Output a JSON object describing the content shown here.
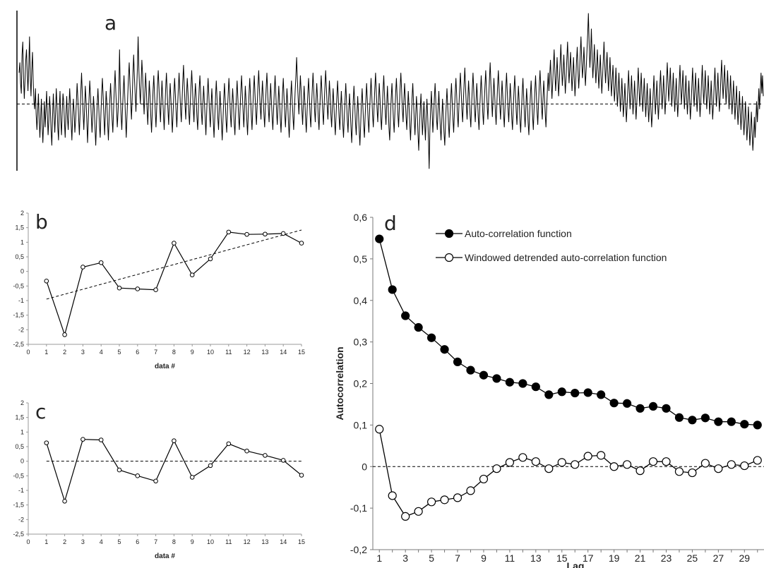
{
  "chart_data": [
    {
      "id": "a",
      "panel_label": "a",
      "type": "line",
      "title": "",
      "xlabel": "",
      "ylabel": "",
      "grid": false,
      "baseline": 0,
      "description_of_values": "noisy time series of about 1000 samples fluctuating around a dashed zero baseline; values estimated",
      "values": [
        1.2,
        1.6,
        0.8,
        0.4,
        1.9,
        2.4,
        1.0,
        0.2,
        0.9,
        1.7,
        2.1,
        1.2,
        0.5,
        1.4,
        2.6,
        1.1,
        0.3,
        1.3,
        2.0,
        0.9,
        0.1,
        -0.2,
        0.6,
        -0.4,
        -1.0,
        -0.3,
        0.4,
        -0.6,
        -1.3,
        -0.5,
        0.2,
        -0.8,
        -1.5,
        -0.7,
        0.1,
        -0.9,
        -0.3,
        0.5,
        -0.4,
        -1.2,
        -0.6,
        0.3,
        -0.2,
        -1.0,
        -1.6,
        -0.5,
        0.4,
        -0.3,
        -1.1,
        -0.4,
        0.6,
        -0.1,
        -0.9,
        -1.4,
        -0.2,
        0.5,
        -0.6,
        -1.2,
        -0.3,
        0.4,
        0.1,
        -0.7,
        -1.3,
        -0.4,
        0.3,
        -0.5,
        -1.0,
        -0.2,
        0.6,
        0.0,
        -0.8,
        -1.4,
        -0.5,
        0.2,
        -0.3,
        -1.1,
        -0.6,
        0.1,
        0.8,
        0.2,
        -0.5,
        -1.2,
        -0.4,
        0.5,
        1.2,
        0.4,
        -0.3,
        -1.0,
        -0.2,
        0.7,
        0.1,
        -0.6,
        -1.5,
        -0.7,
        0.2,
        0.9,
        0.3,
        -0.4,
        -1.1,
        -0.5,
        0.3,
        -0.2,
        -0.9,
        -1.6,
        -0.8,
        0.0,
        0.6,
        -0.1,
        -0.8,
        -1.3,
        -0.4,
        0.4,
        1.0,
        0.3,
        -0.5,
        -1.2,
        -0.3,
        0.5,
        0.0,
        -0.7,
        -1.4,
        -0.6,
        0.2,
        0.8,
        0.1,
        -0.6,
        -1.1,
        -0.2,
        0.6,
        1.3,
        0.5,
        -0.2,
        -0.9,
        -0.3,
        0.4,
        2.1,
        0.6,
        -0.4,
        -1.0,
        -0.2,
        0.5,
        1.1,
        0.3,
        -0.5,
        -1.3,
        -0.5,
        0.3,
        1.0,
        1.6,
        0.8,
        0.1,
        -0.6,
        0.2,
        1.2,
        1.9,
        1.0,
        0.4,
        -0.3,
        0.5,
        1.4,
        2.6,
        1.3,
        0.6,
        0.0,
        0.8,
        1.7,
        1.1,
        0.3,
        -0.4,
        0.4,
        1.2,
        0.6,
        -0.2,
        -0.8,
        0.1,
        0.9,
        0.3,
        -0.5,
        -1.1,
        -0.3,
        0.5,
        1.1,
        0.4,
        -0.3,
        -0.9,
        -0.1,
        0.7,
        1.3,
        0.6,
        -0.1,
        -0.7,
        0.2,
        0.9,
        0.3,
        -0.4,
        -1.0,
        -0.2,
        0.6,
        1.2,
        0.5,
        -0.2,
        -0.8,
        0.1,
        0.8,
        0.2,
        -0.5,
        -1.1,
        -0.3,
        0.4,
        1.0,
        0.4,
        -0.3,
        -0.9,
        -0.1,
        0.6,
        1.2,
        0.5,
        -0.2,
        -0.7,
        0.1,
        0.9,
        1.5,
        0.7,
        0.0,
        -0.6,
        0.3,
        1.0,
        0.4,
        -0.3,
        -0.8,
        0.0,
        0.7,
        1.3,
        0.6,
        -0.1,
        -0.7,
        0.2,
        0.8,
        0.2,
        -0.5,
        -1.0,
        -0.2,
        0.6,
        1.1,
        0.4,
        -0.3,
        -0.8,
        0.0,
        0.7,
        0.1,
        -0.5,
        -1.2,
        -0.4,
        0.4,
        1.0,
        0.3,
        -0.4,
        -0.9,
        -0.1,
        0.6,
        0.0,
        -0.7,
        -1.3,
        -0.5,
        0.3,
        0.9,
        0.2,
        -0.5,
        -1.0,
        -0.2,
        0.5,
        -0.1,
        -0.8,
        -1.4,
        -0.6,
        0.2,
        0.8,
        0.1,
        -0.6,
        -1.1,
        -0.3,
        0.4,
        1.0,
        0.3,
        -0.4,
        -0.9,
        -0.1,
        0.6,
        0.0,
        -0.7,
        -1.2,
        -0.4,
        0.3,
        0.9,
        0.2,
        -0.5,
        -1.0,
        -0.2,
        0.5,
        1.1,
        0.4,
        -0.3,
        -0.9,
        -0.1,
        0.7,
        0.1,
        -0.6,
        -1.2,
        -0.4,
        0.4,
        1.0,
        0.3,
        -0.4,
        -1.0,
        -0.2,
        0.5,
        1.1,
        0.4,
        -0.3,
        -0.8,
        0.0,
        0.7,
        1.3,
        0.6,
        -0.1,
        -0.6,
        0.2,
        0.9,
        0.3,
        -0.4,
        -0.9,
        -0.1,
        0.6,
        1.2,
        0.5,
        -0.2,
        -0.7,
        0.1,
        0.8,
        0.2,
        -0.5,
        -1.0,
        -0.2,
        0.5,
        1.1,
        0.4,
        -0.3,
        -0.8,
        0.0,
        0.7,
        0.1,
        -0.6,
        -1.1,
        -0.3,
        0.4,
        1.0,
        0.3,
        -0.4,
        -0.9,
        -0.1,
        0.6,
        0.0,
        -0.7,
        -1.3,
        -0.5,
        0.3,
        0.9,
        0.2,
        -0.5,
        -1.0,
        -0.2,
        0.5,
        1.1,
        1.8,
        0.9,
        0.2,
        -0.4,
        0.4,
        1.1,
        0.5,
        -0.2,
        -0.8,
        0.0,
        0.7,
        0.1,
        -0.6,
        -1.1,
        -0.3,
        0.4,
        1.0,
        0.3,
        -0.4,
        -0.9,
        -0.1,
        0.6,
        1.2,
        0.5,
        -0.2,
        -0.7,
        0.1,
        0.8,
        0.2,
        -0.5,
        -1.0,
        -0.2,
        0.5,
        1.1,
        0.4,
        -0.3,
        -0.8,
        0.0,
        0.7,
        1.3,
        0.6,
        -0.1,
        -0.6,
        0.2,
        0.9,
        0.3,
        -0.4,
        -0.9,
        -0.1,
        0.6,
        0.0,
        -0.7,
        -1.2,
        -0.4,
        0.3,
        0.9,
        0.2,
        -0.5,
        -1.0,
        -0.2,
        0.5,
        -0.1,
        -0.8,
        -1.3,
        -0.5,
        0.2,
        0.8,
        0.1,
        -0.6,
        -1.1,
        -0.3,
        0.4,
        -0.2,
        -0.9,
        -1.5,
        -0.7,
        0.1,
        0.7,
        0.0,
        -0.7,
        -1.2,
        -0.4,
        0.3,
        -0.3,
        -1.0,
        -1.6,
        -0.8,
        0.0,
        0.6,
        -0.1,
        -0.8,
        -1.3,
        -0.5,
        0.2,
        0.8,
        0.1,
        -0.6,
        -1.1,
        -0.3,
        0.4,
        1.0,
        0.3,
        -0.4,
        -0.9,
        -0.1,
        0.6,
        1.2,
        0.5,
        -0.2,
        -0.7,
        0.1,
        0.8,
        0.2,
        -0.5,
        -1.0,
        -0.2,
        0.5,
        1.1,
        0.4,
        -0.3,
        -0.8,
        0.0,
        0.7,
        -0.1,
        -0.9,
        -1.4,
        -0.6,
        0.2,
        0.8,
        0.1,
        -0.6,
        -1.1,
        -0.3,
        0.4,
        1.0,
        0.3,
        -0.4,
        -0.9,
        -0.1,
        0.6,
        1.2,
        0.5,
        -0.2,
        -0.7,
        0.1,
        0.8,
        0.2,
        -0.5,
        -1.0,
        -0.2,
        0.5,
        -0.1,
        -0.8,
        -1.4,
        -0.6,
        0.2,
        0.8,
        0.1,
        -0.6,
        -1.2,
        -0.4,
        0.3,
        -0.3,
        -1.1,
        -1.8,
        -0.9,
        -0.2,
        0.4,
        -0.4,
        -1.2,
        -0.6,
        0.1,
        -0.7,
        -1.4,
        -0.5,
        0.2,
        -0.4,
        -1.3,
        -2.5,
        -1.0,
        -0.2,
        0.5,
        -0.3,
        -1.1,
        -0.5,
        0.2,
        0.8,
        0.1,
        -0.6,
        -1.0,
        -0.2,
        0.5,
        -0.2,
        -0.9,
        -1.4,
        -0.6,
        0.2,
        -0.4,
        -1.1,
        -1.6,
        -0.8,
        0.0,
        0.6,
        -0.1,
        -0.8,
        -1.3,
        -0.5,
        0.2,
        0.8,
        0.1,
        -0.6,
        -1.1,
        -0.3,
        0.4,
        1.0,
        0.3,
        -0.4,
        -0.9,
        -0.1,
        0.6,
        1.2,
        0.5,
        -0.2,
        -0.7,
        0.1,
        0.8,
        1.4,
        0.6,
        -0.1,
        -0.6,
        0.2,
        0.9,
        0.3,
        -0.4,
        -0.9,
        -0.1,
        0.6,
        1.2,
        0.5,
        -0.2,
        -0.7,
        0.1,
        0.8,
        0.2,
        -0.5,
        -1.0,
        -0.2,
        0.5,
        1.1,
        0.4,
        -0.3,
        -0.8,
        0.0,
        0.7,
        1.3,
        0.6,
        -0.1,
        -0.6,
        0.2,
        0.9,
        1.6,
        0.8,
        0.1,
        -0.5,
        0.3,
        1.0,
        0.4,
        -0.3,
        -0.8,
        0.0,
        0.7,
        1.3,
        0.6,
        -0.1,
        -0.6,
        0.2,
        0.9,
        0.3,
        -0.4,
        -0.9,
        -0.1,
        0.6,
        1.2,
        0.5,
        -0.2,
        -0.7,
        0.1,
        0.8,
        0.2,
        -0.5,
        -1.0,
        -0.2,
        0.5,
        1.1,
        0.4,
        -0.3,
        -0.8,
        0.0,
        0.7,
        0.1,
        -0.6,
        -1.1,
        -0.3,
        0.4,
        1.0,
        0.3,
        -0.4,
        -0.9,
        -0.1,
        0.6,
        0.0,
        -0.7,
        -1.2,
        -0.4,
        0.3,
        0.9,
        0.2,
        -0.5,
        -1.0,
        -0.2,
        0.5,
        1.1,
        0.4,
        -0.3,
        -0.8,
        0.0,
        0.7,
        1.3,
        0.6,
        -0.1,
        -0.6,
        0.2,
        0.9,
        0.3,
        -0.4,
        -0.9,
        -0.1,
        0.6,
        1.2,
        0.5,
        1.1,
        1.7,
        0.9,
        0.2,
        0.8,
        1.5,
        2.1,
        1.2,
        0.5,
        1.1,
        1.8,
        1.0,
        0.3,
        0.9,
        1.6,
        2.3,
        1.4,
        0.7,
        1.2,
        1.9,
        1.1,
        0.4,
        1.0,
        1.7,
        2.4,
        1.5,
        0.8,
        1.4,
        2.0,
        1.2,
        0.5,
        1.1,
        1.8,
        1.0,
        0.3,
        0.9,
        1.6,
        2.2,
        1.3,
        0.6,
        1.2,
        1.9,
        2.6,
        1.7,
        1.0,
        1.5,
        2.2,
        1.4,
        0.7,
        1.3,
        2.0,
        2.7,
        3.5,
        2.3,
        1.4,
        2.0,
        2.9,
        1.8,
        1.0,
        1.6,
        2.3,
        1.5,
        0.8,
        1.4,
        2.1,
        1.3,
        0.6,
        1.2,
        1.9,
        1.1,
        0.4,
        1.0,
        1.7,
        2.4,
        1.5,
        0.8,
        1.4,
        2.0,
        1.2,
        0.5,
        1.1,
        1.8,
        1.0,
        0.3,
        0.9,
        1.5,
        0.8,
        0.1,
        0.7,
        1.4,
        0.6,
        -0.1,
        0.5,
        1.2,
        0.4,
        -0.3,
        0.3,
        1.0,
        0.2,
        -0.5,
        0.1,
        0.8,
        0.0,
        -0.7,
        -0.1,
        0.6,
        1.3,
        0.5,
        -0.2,
        0.4,
        1.1,
        0.3,
        -0.4,
        0.2,
        0.9,
        0.1,
        -0.6,
        0.0,
        0.7,
        1.4,
        0.6,
        -0.1,
        0.5,
        1.2,
        0.4,
        -0.3,
        0.3,
        1.0,
        0.2,
        -0.5,
        0.1,
        0.8,
        0.0,
        -0.7,
        -0.1,
        0.6,
        -0.2,
        -0.9,
        -0.3,
        0.4,
        1.1,
        0.3,
        -0.4,
        0.2,
        0.9,
        0.1,
        -0.6,
        0.0,
        0.7,
        1.3,
        0.5,
        -0.2,
        0.4,
        1.1,
        0.3,
        -0.4,
        0.2,
        0.9,
        1.6,
        0.8,
        0.1,
        0.7,
        1.4,
        0.6,
        -0.1,
        0.5,
        1.2,
        0.4,
        -0.3,
        0.3,
        1.0,
        0.2,
        -0.5,
        0.1,
        0.8,
        1.5,
        0.7,
        0.0,
        0.6,
        1.3,
        0.5,
        -0.2,
        0.4,
        1.1,
        0.3,
        -0.4,
        0.2,
        0.9,
        0.1,
        -0.6,
        0.0,
        0.7,
        1.4,
        0.6,
        -0.1,
        0.5,
        1.2,
        0.4,
        -0.3,
        0.3,
        1.0,
        0.2,
        -0.5,
        0.1,
        0.8,
        1.5,
        0.7,
        0.0,
        0.6,
        1.3,
        0.5,
        -0.2,
        0.4,
        1.1,
        0.3,
        -0.4,
        0.2,
        0.9,
        0.1,
        -0.6,
        0.0,
        0.7,
        1.4,
        0.6,
        -0.1,
        0.5,
        1.2,
        0.4,
        -0.3,
        0.3,
        1.0,
        1.7,
        0.9,
        0.2,
        0.8,
        1.5,
        0.7,
        0.0,
        0.6,
        1.3,
        0.5,
        -0.2,
        0.4,
        1.1,
        0.3,
        -0.4,
        0.2,
        0.9,
        0.1,
        -0.6,
        0.0,
        0.7,
        -0.1,
        -0.8,
        -0.2,
        0.5,
        -0.3,
        -1.0,
        -0.4,
        0.3,
        -0.5,
        -1.2,
        -0.6,
        0.1,
        -0.7,
        -1.4,
        -0.8,
        -0.1,
        -0.9,
        -1.6,
        -1.0,
        -0.3,
        -1.1,
        -1.8,
        -1.2,
        -0.5,
        -1.3,
        -0.6,
        0.1,
        -0.7,
        -0.1,
        0.6,
        -0.2,
        0.5,
        1.2,
        0.4,
        1.1,
        0.3
      ],
      "ylim": [
        -3.2,
        3.6
      ]
    },
    {
      "id": "b",
      "panel_label": "b",
      "type": "line",
      "title": "",
      "xlabel": "data #",
      "ylabel": "",
      "xlim": [
        0,
        15
      ],
      "ylim": [
        -2.5,
        2
      ],
      "x_ticks": [
        "0",
        "1",
        "2",
        "3",
        "4",
        "5",
        "6",
        "7",
        "8",
        "9",
        "10",
        "11",
        "12",
        "13",
        "14",
        "15"
      ],
      "y_ticks": [
        "-2,5",
        "-2",
        "-1,5",
        "-1",
        "-0,5",
        "0",
        "0,5",
        "1",
        "1,5",
        "2"
      ],
      "x": [
        1,
        2,
        3,
        4,
        5,
        6,
        7,
        8,
        9,
        10,
        11,
        12,
        13,
        14,
        15
      ],
      "values": [
        -0.33,
        -2.17,
        0.15,
        0.3,
        -0.57,
        -0.6,
        -0.63,
        0.97,
        -0.12,
        0.43,
        1.35,
        1.27,
        1.28,
        1.3,
        0.97
      ],
      "trendline": {
        "x": [
          1,
          15
        ],
        "y": [
          -0.95,
          1.42
        ]
      },
      "grid": false
    },
    {
      "id": "c",
      "panel_label": "c",
      "type": "line",
      "title": "",
      "xlabel": "data #",
      "ylabel": "",
      "xlim": [
        0,
        15
      ],
      "ylim": [
        -2.5,
        2
      ],
      "x_ticks": [
        "0",
        "1",
        "2",
        "3",
        "4",
        "5",
        "6",
        "7",
        "8",
        "9",
        "10",
        "11",
        "12",
        "13",
        "14",
        "15"
      ],
      "y_ticks": [
        "-2,5",
        "-2",
        "-1,5",
        "-1",
        "-0,5",
        "0",
        "0,5",
        "1",
        "1,5",
        "2"
      ],
      "x": [
        1,
        2,
        3,
        4,
        5,
        6,
        7,
        8,
        9,
        10,
        11,
        12,
        13,
        14,
        15
      ],
      "values": [
        0.63,
        -1.37,
        0.75,
        0.73,
        -0.3,
        -0.5,
        -0.68,
        0.7,
        -0.55,
        -0.15,
        0.6,
        0.35,
        0.2,
        0.03,
        -0.48
      ],
      "baseline": 0,
      "grid": false
    },
    {
      "id": "d",
      "panel_label": "d",
      "type": "line",
      "title": "",
      "xlabel": "Lag",
      "ylabel": "Autocorrelation",
      "xlim": [
        0.5,
        30.5
      ],
      "ylim": [
        -0.2,
        0.6
      ],
      "x_ticks": [
        "1",
        "3",
        "5",
        "7",
        "9",
        "11",
        "13",
        "15",
        "17",
        "19",
        "21",
        "23",
        "25",
        "27",
        "29"
      ],
      "y_ticks": [
        "-0,2",
        "-0,1",
        "0",
        "0,1",
        "0,2",
        "0,3",
        "0,4",
        "0,5",
        "0,6"
      ],
      "legend_position": "top-right",
      "x": [
        1,
        2,
        3,
        4,
        5,
        6,
        7,
        8,
        9,
        10,
        11,
        12,
        13,
        14,
        15,
        16,
        17,
        18,
        19,
        20,
        21,
        22,
        23,
        24,
        25,
        26,
        27,
        28,
        29,
        30
      ],
      "series": [
        {
          "name": "Auto-correlation function",
          "marker": "filled-circle",
          "values": [
            0.548,
            0.426,
            0.363,
            0.335,
            0.31,
            0.282,
            0.252,
            0.232,
            0.22,
            0.212,
            0.203,
            0.2,
            0.192,
            0.173,
            0.18,
            0.177,
            0.178,
            0.173,
            0.153,
            0.152,
            0.14,
            0.145,
            0.14,
            0.118,
            0.112,
            0.117,
            0.108,
            0.108,
            0.102,
            0.1
          ]
        },
        {
          "name": "Windowed detrended auto-correlation function",
          "marker": "open-circle",
          "values": [
            0.09,
            -0.07,
            -0.12,
            -0.108,
            -0.085,
            -0.08,
            -0.075,
            -0.058,
            -0.03,
            -0.005,
            0.01,
            0.022,
            0.012,
            -0.005,
            0.01,
            0.005,
            0.025,
            0.027,
            0.0,
            0.005,
            -0.01,
            0.012,
            0.012,
            -0.012,
            -0.015,
            0.008,
            -0.005,
            0.005,
            0.002,
            0.015
          ]
        }
      ],
      "baseline": 0,
      "grid": false
    }
  ]
}
